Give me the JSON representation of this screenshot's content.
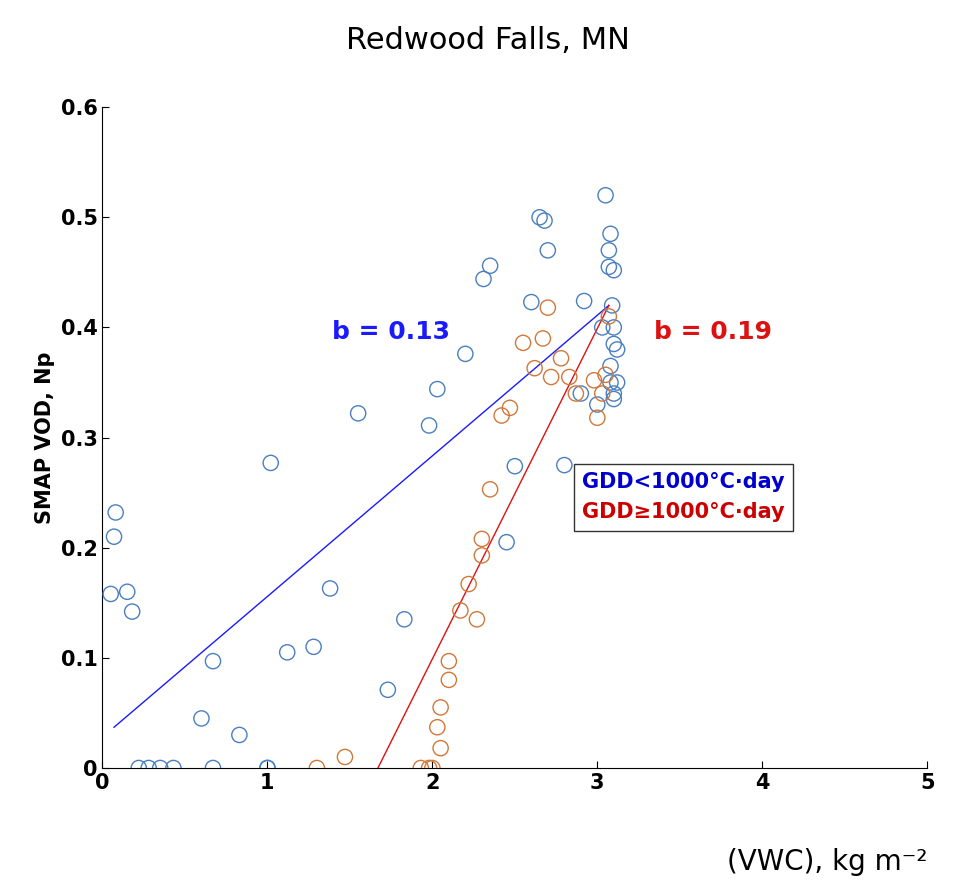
{
  "chart_data": {
    "type": "scatter",
    "title": "Redwood Falls, MN",
    "x_label": "(VWC), kg m⁻²",
    "y_label": "SMAP VOD, Np",
    "xlim": [
      0,
      5
    ],
    "ylim": [
      0,
      0.6
    ],
    "xticks": [
      0,
      1,
      2,
      3,
      4,
      5
    ],
    "yticks": [
      0,
      0.1,
      0.2,
      0.3,
      0.4,
      0.5,
      0.6
    ],
    "legend": "center right",
    "series": [
      {
        "name": "GDD<1000°C·day",
        "color": "#4a7fbf",
        "marker": "circle",
        "x": [
          0.07,
          0.08,
          0.05,
          0.15,
          0.18,
          0.22,
          0.28,
          0.35,
          0.43,
          0.6,
          0.67,
          0.67,
          0.83,
          1.0,
          1.0,
          1.02,
          1.12,
          1.28,
          1.38,
          1.55,
          1.73,
          1.83,
          1.98,
          2.03,
          2.2,
          2.31,
          2.35,
          2.45,
          2.5,
          2.6,
          2.65,
          2.68,
          2.7,
          2.8,
          2.9,
          2.92,
          3.0,
          3.03,
          3.05,
          3.07,
          3.07,
          3.08,
          3.09,
          3.1,
          3.1,
          3.1,
          3.12,
          3.08,
          3.08,
          3.1,
          3.1,
          3.12
        ],
        "values": [
          0.21,
          0.232,
          0.158,
          0.16,
          0.142,
          0,
          0,
          0,
          0,
          0.045,
          0.097,
          0,
          0.03,
          0,
          0,
          0.277,
          0.105,
          0.11,
          0.163,
          0.322,
          0.071,
          0.135,
          0.311,
          0.344,
          0.376,
          0.444,
          0.456,
          0.205,
          0.274,
          0.423,
          0.5,
          0.497,
          0.47,
          0.275,
          0.34,
          0.424,
          0.33,
          0.4,
          0.52,
          0.47,
          0.455,
          0.485,
          0.42,
          0.452,
          0.4,
          0.385,
          0.38,
          0.365,
          0.35,
          0.34,
          0.335,
          0.35
        ]
      },
      {
        "name": "GDD≥1000°C·day",
        "color": "#d2773a",
        "marker": "circle",
        "x": [
          1.3,
          1.47,
          1.93,
          1.98,
          2.0,
          2.05,
          2.03,
          2.05,
          2.1,
          2.1,
          2.17,
          2.22,
          2.27,
          2.3,
          2.3,
          2.35,
          2.42,
          2.47,
          2.55,
          2.62,
          2.67,
          2.7,
          2.72,
          2.78,
          2.83,
          2.87,
          2.98,
          3.0,
          3.03,
          3.05,
          3.07
        ],
        "values": [
          0,
          0.01,
          0,
          0,
          0,
          0.018,
          0.037,
          0.055,
          0.08,
          0.097,
          0.143,
          0.167,
          0.135,
          0.193,
          0.208,
          0.253,
          0.32,
          0.327,
          0.386,
          0.363,
          0.39,
          0.418,
          0.355,
          0.372,
          0.355,
          0.34,
          0.352,
          0.318,
          0.34,
          0.357,
          0.41
        ]
      }
    ],
    "fit_lines": [
      {
        "label": "b = 0.13",
        "color": "#1a1aff",
        "x": [
          0.07,
          3.07
        ],
        "values": [
          0.037,
          0.42
        ]
      },
      {
        "label": "b = 0.19",
        "color": "#dd1111",
        "x": [
          1.67,
          3.07
        ],
        "values": [
          0,
          0.42
        ]
      }
    ]
  }
}
